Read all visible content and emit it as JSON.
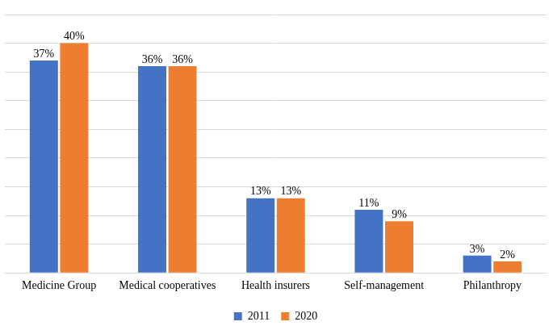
{
  "chart_data": {
    "type": "bar",
    "categories": [
      "Medicine Group",
      "Medical cooperatives",
      "Health insurers",
      "Self-management",
      "Philanthropy"
    ],
    "series": [
      {
        "name": "2011",
        "color": "#4472c4",
        "values": [
          37,
          36,
          13,
          11,
          3
        ],
        "value_labels": [
          "37%",
          "36%",
          "13%",
          "11%",
          "3%"
        ]
      },
      {
        "name": "2020",
        "color": "#ed7d31",
        "values": [
          40,
          36,
          13,
          9,
          2
        ],
        "value_labels": [
          "40%",
          "36%",
          "13%",
          "9%",
          "2%"
        ]
      }
    ],
    "ylim": [
      0,
      45
    ],
    "yticks": [
      0,
      5,
      10,
      15,
      20,
      25,
      30,
      35,
      40,
      45
    ],
    "grid": true,
    "legend": "bottom",
    "data_labels": true,
    "tick_labels": "x"
  }
}
